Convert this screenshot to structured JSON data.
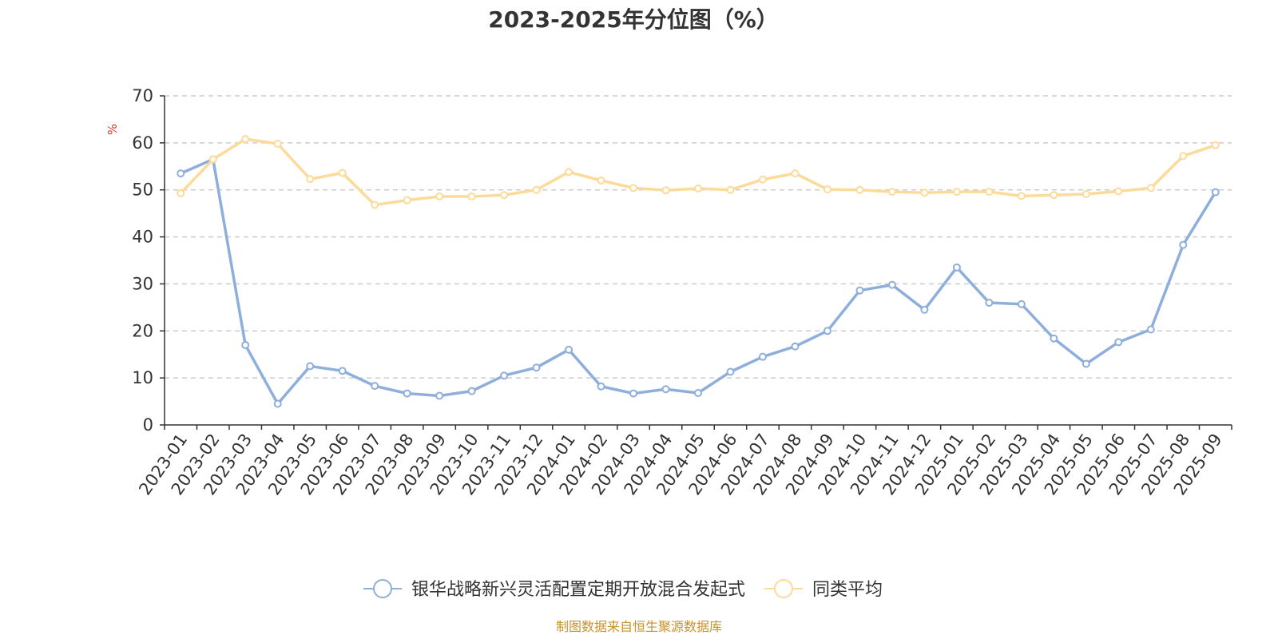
{
  "chart_data": {
    "type": "line",
    "title": "2023-2025年分位图（%）",
    "unit": "%",
    "source": "制图数据来自恒生聚源数据库",
    "ylim": [
      0,
      70
    ],
    "yticks": [
      0,
      10,
      20,
      30,
      40,
      50,
      60,
      70
    ],
    "grid": true,
    "legend_position": "bottom",
    "categories": [
      "2023-01",
      "2023-02",
      "2023-03",
      "2023-04",
      "2023-05",
      "2023-06",
      "2023-07",
      "2023-08",
      "2023-09",
      "2023-10",
      "2023-11",
      "2023-12",
      "2024-01",
      "2024-02",
      "2024-03",
      "2024-04",
      "2024-05",
      "2024-06",
      "2024-07",
      "2024-08",
      "2024-09",
      "2024-10",
      "2024-11",
      "2024-12",
      "2025-01",
      "2025-02",
      "2025-03",
      "2025-04",
      "2025-05",
      "2025-06",
      "2025-07",
      "2025-08",
      "2025-09"
    ],
    "series": [
      {
        "name": "银华战略新兴灵活配置定期开放混合发起式",
        "color": "#8eaedb",
        "values": [
          53.5,
          56.5,
          17.0,
          4.5,
          12.5,
          11.5,
          8.3,
          6.7,
          6.2,
          7.2,
          10.5,
          12.2,
          16.0,
          8.2,
          6.7,
          7.6,
          6.8,
          11.3,
          14.5,
          16.7,
          20.0,
          28.6,
          29.8,
          24.5,
          33.5,
          26.0,
          25.7,
          18.4,
          13.0,
          17.6,
          20.3,
          38.3,
          49.5
        ]
      },
      {
        "name": "同类平均",
        "color": "#fcdb9a",
        "values": [
          49.3,
          56.5,
          60.8,
          59.8,
          52.3,
          53.6,
          46.8,
          47.8,
          48.6,
          48.6,
          48.9,
          50.0,
          53.8,
          52.0,
          50.4,
          49.9,
          50.3,
          50.0,
          52.2,
          53.5,
          50.1,
          50.0,
          49.6,
          49.4,
          49.6,
          49.6,
          48.7,
          48.9,
          49.1,
          49.7,
          50.4,
          57.2,
          59.5
        ]
      }
    ]
  }
}
